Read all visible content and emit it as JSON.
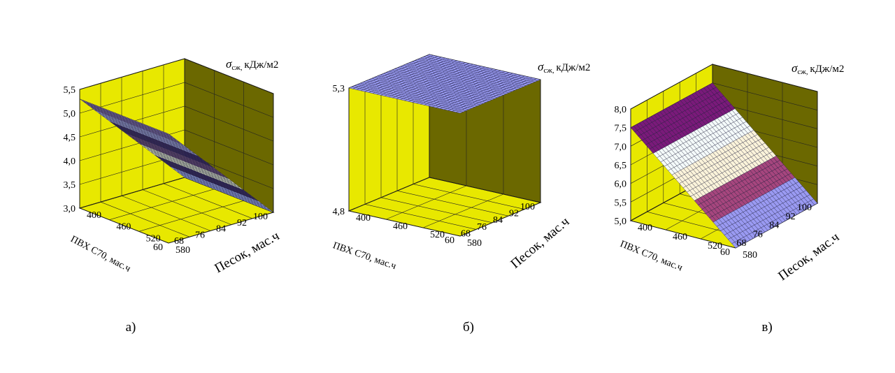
{
  "chart_data": [
    {
      "type": "surface3d",
      "caption": "а)",
      "zlabel_sym": "σ",
      "zlabel_sub": "сж,",
      "zlabel_unit": "кДж/м2",
      "xlabel": "ПВХ С70, мас.ч",
      "ylabel": "Песок, мас.ч",
      "x_ticks": [
        "60",
        "68",
        "76",
        "84",
        "92",
        "100"
      ],
      "y_ticks": [
        "400",
        "460",
        "520",
        "580"
      ],
      "z_ticks": [
        "3,0",
        "3,5",
        "4,0",
        "4,5",
        "5,0",
        "5,5"
      ],
      "xlim": [
        60,
        100
      ],
      "ylim": [
        400,
        580
      ],
      "zlim": [
        3.0,
        5.5
      ],
      "surface": {
        "x": [
          60,
          100
        ],
        "y": [
          400,
          580
        ],
        "z": [
          [
            5.3,
            5.3
          ],
          [
            3.0,
            3.0
          ]
        ]
      },
      "bands": [
        "#9aa8e6",
        "#3a2b5e",
        "#e0e9c6",
        "#6a4d75",
        "#3a2b5e",
        "#9a9fd0",
        "#7b6aa0"
      ],
      "pane_color": "#e8e800"
    },
    {
      "type": "surface3d",
      "caption": "б)",
      "zlabel_sym": "σ",
      "zlabel_sub": "сж,",
      "zlabel_unit": "кДж/м2",
      "xlabel": "ПВХ С70, мас.ч",
      "ylabel": "Песок, мас.ч",
      "x_ticks": [
        "60",
        "68",
        "76",
        "84",
        "92",
        "100"
      ],
      "y_ticks": [
        "400",
        "460",
        "520",
        "580"
      ],
      "z_ticks": [
        "4,8",
        "5,3"
      ],
      "xlim": [
        60,
        100
      ],
      "ylim": [
        400,
        580
      ],
      "zlim": [
        4.8,
        5.3
      ],
      "surface": {
        "x": [
          60,
          100
        ],
        "y": [
          400,
          580
        ],
        "z": [
          [
            5.3,
            5.3
          ],
          [
            5.3,
            5.3
          ]
        ]
      },
      "bands": [
        "#9b9cf4"
      ],
      "pane_color": "#e8e800"
    },
    {
      "type": "surface3d",
      "caption": "в)",
      "zlabel_sym": "σ",
      "zlabel_sub": "сж,",
      "zlabel_unit": "кДж/м2",
      "xlabel": "ПВХ С70, мас.ч",
      "ylabel": "Песок, мас.ч",
      "x_ticks": [
        "60",
        "68",
        "76",
        "84",
        "92",
        "100"
      ],
      "y_ticks": [
        "400",
        "460",
        "520",
        "580"
      ],
      "z_ticks": [
        "5,0",
        "5,5",
        "6,0",
        "6,5",
        "7,0",
        "7,5",
        "8,0"
      ],
      "xlim": [
        60,
        100
      ],
      "ylim": [
        400,
        580
      ],
      "zlim": [
        5.0,
        8.0
      ],
      "surface": {
        "x": [
          60,
          100
        ],
        "y": [
          400,
          580
        ],
        "z": [
          [
            7.5,
            5.0
          ],
          [
            7.5,
            5.0
          ]
        ]
      },
      "bands": [
        "#9a9af2",
        "#a6467e",
        "#fbf3da",
        "#f4fafa",
        "#7a1a7a"
      ],
      "pane_color": "#e8e800"
    }
  ]
}
